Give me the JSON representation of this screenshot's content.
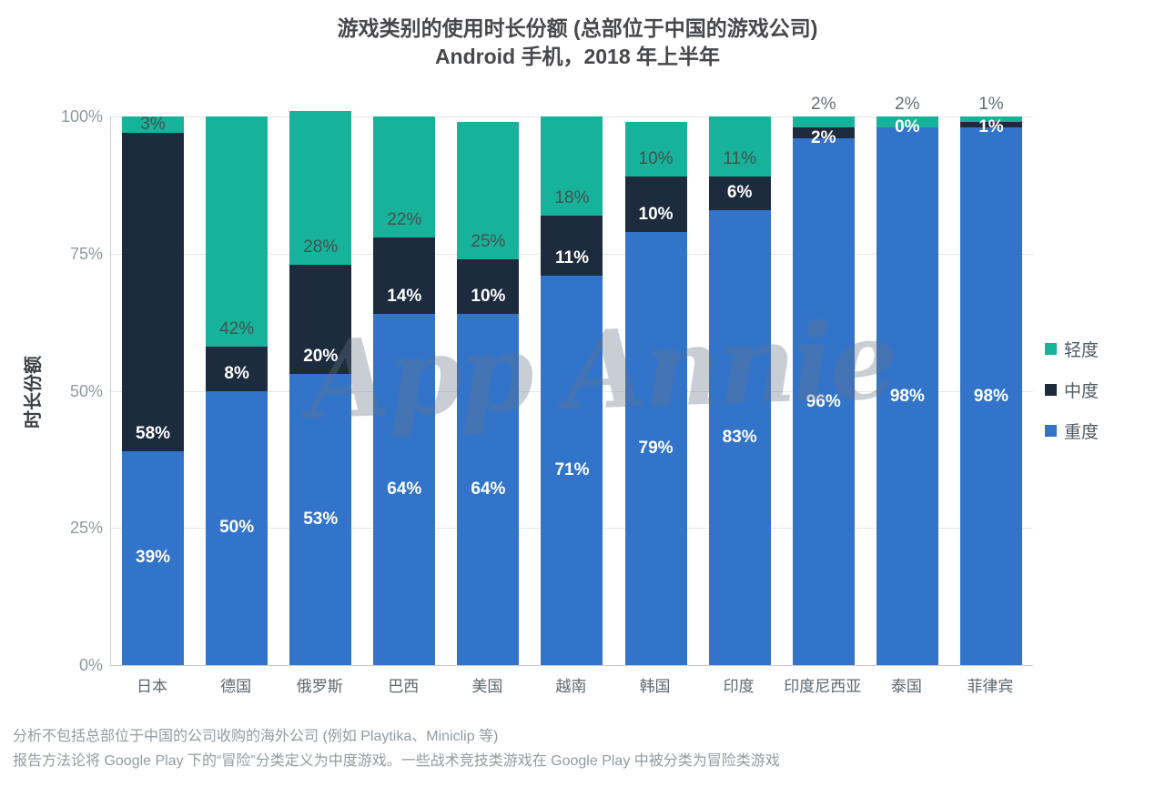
{
  "title": {
    "line1": "游戏类别的使用时长份额 (总部位于中国的游戏公司)",
    "line2": "Android 手机，2018 年上半年"
  },
  "watermark": "App Annie",
  "y_axis": {
    "label": "时长份额",
    "ticks": [
      "100%",
      "75%",
      "50%",
      "25%",
      "0%"
    ]
  },
  "legend": {
    "position": "right",
    "items": [
      {
        "label": "轻度",
        "color": "#17b29a"
      },
      {
        "label": "中度",
        "color": "#1d2b3e"
      },
      {
        "label": "重度",
        "color": "#3274ca"
      }
    ]
  },
  "footnotes": [
    "分析不包括总部位于中国的公司收购的海外公司 (例如 Playtika、Miniclip 等)",
    "报告方法论将 Google Play 下的“冒险”分类定义为中度游戏。一些战术竞技类游戏在 Google Play 中被分类为冒险类游戏"
  ],
  "chart_data": {
    "type": "bar",
    "stacked": true,
    "stacked_total": 100,
    "title": "游戏类别的使用时长份额 (总部位于中国的游戏公司)",
    "subtitle": "Android 手机，2018 年上半年",
    "xlabel": "",
    "ylabel": "时长份额",
    "ylim": [
      0,
      100
    ],
    "grid": true,
    "legend_position": "right",
    "categories": [
      "日本",
      "德国",
      "俄罗斯",
      "巴西",
      "美国",
      "越南",
      "韩国",
      "印度",
      "印度尼西亚",
      "泰国",
      "菲律宾"
    ],
    "series": [
      {
        "name": "重度",
        "key": "heavy",
        "color": "#3274ca",
        "values": [
          39,
          50,
          53,
          64,
          64,
          71,
          79,
          83,
          96,
          98,
          98
        ]
      },
      {
        "name": "中度",
        "key": "mid",
        "color": "#1d2b3e",
        "values": [
          58,
          8,
          20,
          14,
          10,
          11,
          10,
          6,
          2,
          0,
          1
        ]
      },
      {
        "name": "轻度",
        "key": "light",
        "color": "#17b29a",
        "values": [
          3,
          42,
          28,
          22,
          25,
          18,
          10,
          11,
          2,
          2,
          1
        ]
      }
    ]
  }
}
